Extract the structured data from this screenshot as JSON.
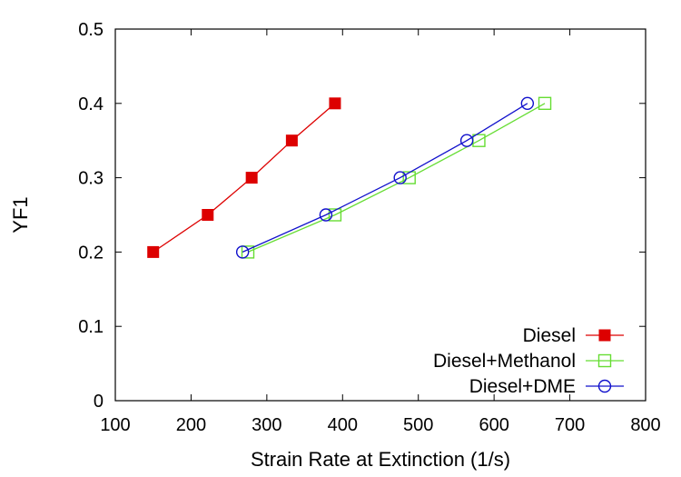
{
  "chart_data": {
    "type": "line",
    "xlabel": "Strain Rate at Extinction (1/s)",
    "ylabel": "YF1",
    "xlim": [
      100,
      800
    ],
    "ylim": [
      0,
      0.5
    ],
    "xticks": [
      100,
      200,
      300,
      400,
      500,
      600,
      700,
      800
    ],
    "yticks": [
      0,
      0.1,
      0.2,
      0.3,
      0.4,
      0.5
    ],
    "ytick_labels": [
      "0",
      "0.1",
      "0.2",
      "0.3",
      "0.4",
      "0.5"
    ],
    "grid": false,
    "legend_position": "bottom-right",
    "series": [
      {
        "name": "Diesel",
        "marker": "filled-square",
        "color": "#dd0000",
        "x": [
          150,
          222,
          280,
          333,
          390
        ],
        "y": [
          0.2,
          0.25,
          0.3,
          0.35,
          0.4
        ]
      },
      {
        "name": "Diesel+Methanol",
        "marker": "open-square",
        "color": "#66dd33",
        "x": [
          275,
          390,
          488,
          580,
          667
        ],
        "y": [
          0.2,
          0.25,
          0.3,
          0.35,
          0.4
        ]
      },
      {
        "name": "Diesel+DME",
        "marker": "open-circle",
        "color": "#1111cc",
        "x": [
          268,
          378,
          476,
          564,
          644
        ],
        "y": [
          0.2,
          0.25,
          0.3,
          0.35,
          0.4
        ]
      }
    ]
  }
}
